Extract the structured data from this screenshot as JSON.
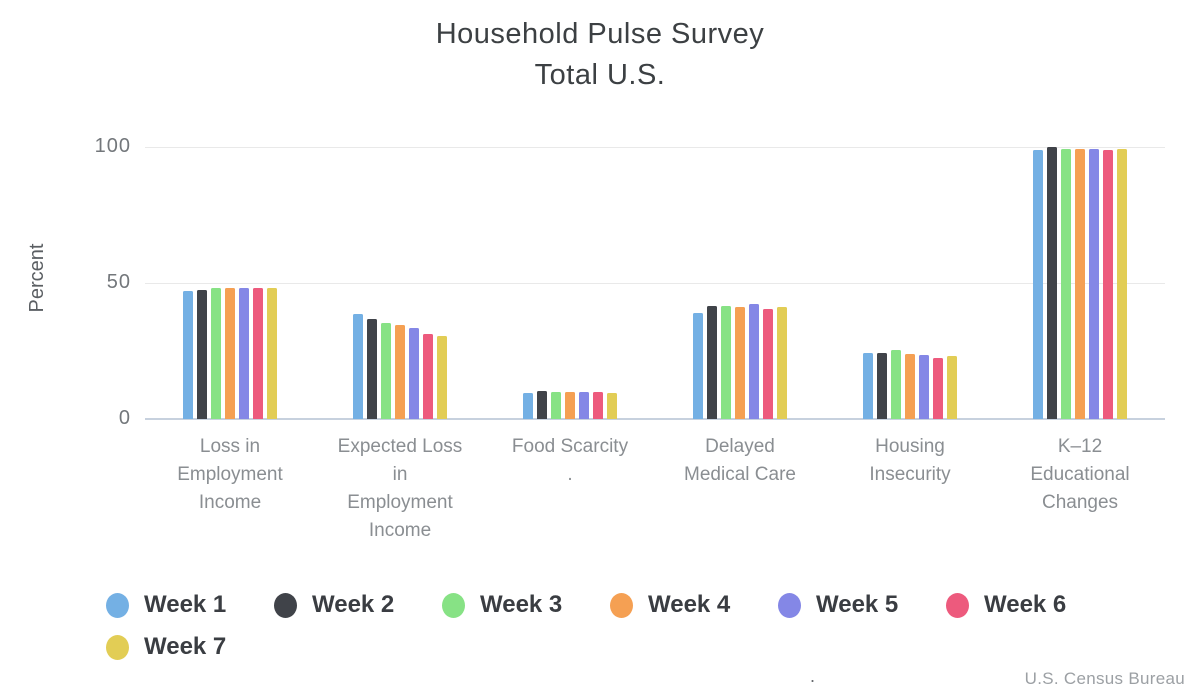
{
  "title": {
    "line1": "Household Pulse Survey",
    "line2": "Total U.S."
  },
  "y_axis": {
    "label": "Percent",
    "ticks": [
      "100",
      "50",
      "0"
    ]
  },
  "attribution": "U.S. Census Bureau",
  "stray_dot": ".",
  "chart_data": {
    "type": "bar",
    "title": "Household Pulse Survey Total U.S.",
    "xlabel": "",
    "ylabel": "Percent",
    "ylim": [
      0,
      100
    ],
    "yticks": [
      0,
      50,
      100
    ],
    "grid": "horizontal",
    "legend_position": "bottom-left",
    "categories": [
      "Loss in Employment Income",
      "Expected Loss in Employment Income",
      "Food Scarcity .",
      "Delayed Medical Care",
      "Housing Insecurity",
      "K–12 Educational Changes"
    ],
    "category_lines": [
      [
        "Loss in",
        "Employment",
        "Income"
      ],
      [
        "Expected Loss",
        "in",
        "Employment",
        "Income"
      ],
      [
        "Food Scarcity",
        "."
      ],
      [
        "Delayed",
        "Medical Care"
      ],
      [
        "Housing",
        "Insecurity"
      ],
      [
        "K–12",
        "Educational",
        "Changes"
      ]
    ],
    "series": [
      {
        "name": "Week 1",
        "color": "#74B0E4",
        "values": [
          47.0,
          38.5,
          9.5,
          38.9,
          24.4,
          99.0
        ]
      },
      {
        "name": "Week 2",
        "color": "#404349",
        "values": [
          47.5,
          36.8,
          10.4,
          41.6,
          24.2,
          100.0
        ]
      },
      {
        "name": "Week 3",
        "color": "#87E285",
        "values": [
          48.3,
          35.4,
          10.1,
          41.4,
          25.5,
          99.2
        ]
      },
      {
        "name": "Week 4",
        "color": "#F5A053",
        "values": [
          48.3,
          34.6,
          10.1,
          41.3,
          23.8,
          99.1
        ]
      },
      {
        "name": "Week 5",
        "color": "#8487E6",
        "values": [
          48.3,
          33.3,
          9.9,
          42.4,
          23.7,
          99.2
        ]
      },
      {
        "name": "Week 6",
        "color": "#ED5A7D",
        "values": [
          48.3,
          31.2,
          10.1,
          40.3,
          22.3,
          99.0
        ]
      },
      {
        "name": "Week 7",
        "color": "#E2CD55",
        "values": [
          48.1,
          30.5,
          9.7,
          41.3,
          23.0,
          99.1
        ]
      }
    ]
  }
}
